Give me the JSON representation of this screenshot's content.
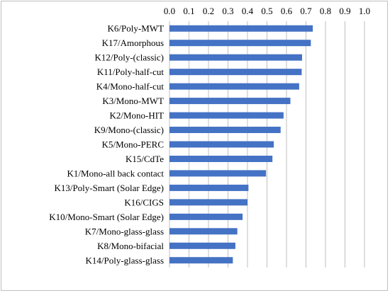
{
  "chart_data": {
    "type": "bar",
    "orientation": "horizontal",
    "x_axis_position": "top",
    "grid": true,
    "xlim": [
      0,
      1.0
    ],
    "ticks": [
      "0.0",
      "0.1",
      "0.2",
      "0.3",
      "0.4",
      "0.5",
      "0.6",
      "0.7",
      "0.8",
      "0.9",
      "1.0"
    ],
    "categories": [
      "K6/Poly-MWT",
      "K17/Amorphous",
      "K12/Poly-(classic)",
      "K11/Poly-half-cut",
      "K4/Mono-half-cut",
      "K3/Mono-MWT",
      "K2/Mono-HIT",
      "K9/Mono-(classic)",
      "K5/Mono-PERC",
      "K15/CdTe",
      "K1/Mono-all back contact",
      "K13/Poly-Smart (Solar Edge)",
      "K16/CIGS",
      "K10/Mono-Smart (Solar Edge)",
      "K7/Mono-glass-glass",
      "K8/Mono-bifacial",
      "K14/Poly-glass-glass"
    ],
    "values": [
      0.735,
      0.725,
      0.68,
      0.678,
      0.665,
      0.62,
      0.585,
      0.57,
      0.535,
      0.528,
      0.495,
      0.405,
      0.4,
      0.375,
      0.348,
      0.338,
      0.325
    ],
    "bar_color": "#4472c4",
    "grid_color": "#bfbfbf"
  }
}
